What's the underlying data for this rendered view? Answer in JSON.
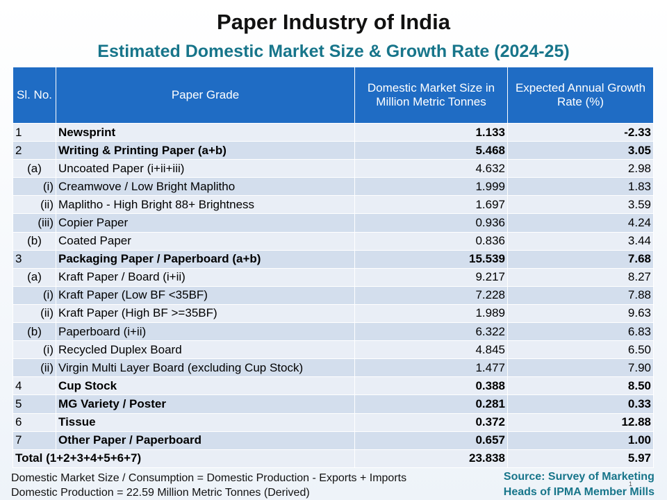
{
  "header": {
    "title": "Paper Industry of India",
    "subtitle": "Estimated Domestic Market Size & Growth Rate (2024-25)"
  },
  "table": {
    "columns": [
      "Sl. No.",
      "Paper Grade",
      "Domestic Market Size in Million Metric Tonnes",
      "Expected Annual Growth Rate (%)"
    ],
    "rows": [
      [
        "1",
        "Newsprint",
        "1.133",
        "-2.33"
      ],
      [
        "2",
        "Writing & Printing Paper (a+b)",
        "5.468",
        "3.05"
      ],
      [
        "(a)",
        "Uncoated Paper (i+ii+iii)",
        "4.632",
        "2.98"
      ],
      [
        "(i)",
        "Creamwove / Low Bright Maplitho",
        "1.999",
        "1.83"
      ],
      [
        "(ii)",
        "Maplitho - High Bright 88+ Brightness",
        "1.697",
        "3.59"
      ],
      [
        "(iii)",
        "Copier Paper",
        "0.936",
        "4.24"
      ],
      [
        "(b)",
        "Coated Paper",
        "0.836",
        "3.44"
      ],
      [
        "3",
        "Packaging Paper / Paperboard (a+b)",
        "15.539",
        "7.68"
      ],
      [
        "(a)",
        "Kraft Paper / Board (i+ii)",
        "9.217",
        "8.27"
      ],
      [
        "(i)",
        "Kraft Paper (Low BF <35BF)",
        "7.228",
        "7.88"
      ],
      [
        "(ii)",
        "Kraft Paper (High BF >=35BF)",
        "1.989",
        "9.63"
      ],
      [
        "(b)",
        "Paperboard (i+ii)",
        "6.322",
        "6.83"
      ],
      [
        "(i)",
        "Recycled Duplex Board",
        "4.845",
        "6.50"
      ],
      [
        "(ii)",
        "Virgin Multi Layer Board (excluding Cup Stock)",
        "1.477",
        "7.90"
      ],
      [
        "4",
        "Cup Stock",
        "0.388",
        "8.50"
      ],
      [
        "5",
        "MG Variety / Poster",
        "0.281",
        "0.33"
      ],
      [
        "6",
        "Tissue",
        "0.372",
        "12.88"
      ],
      [
        "7",
        "Other Paper / Paperboard",
        "0.657",
        "1.00"
      ]
    ],
    "total": [
      "Total (1+2+3+4+5+6+7)",
      "23.838",
      "5.97"
    ]
  },
  "footer": {
    "notes": [
      "Domestic Market Size / Consumption = Domestic Production - Exports + Imports",
      "Domestic Production = 22.59 Million Metric Tonnes (Derived)"
    ],
    "source": [
      "Source: Survey of Marketing",
      "Heads of IPMA Member Mills"
    ],
    "page": "1"
  }
}
